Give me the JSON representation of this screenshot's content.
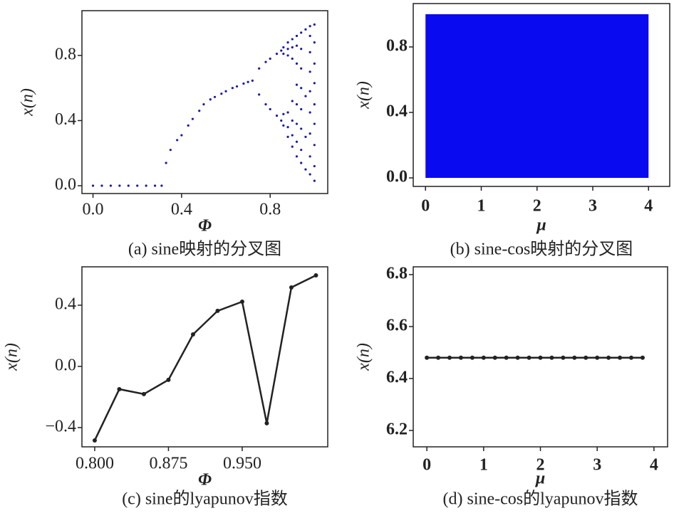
{
  "chart_data": [
    {
      "type": "scatter",
      "caption": "(a) sine映射的分叉图",
      "xlabel": "Φ",
      "ylabel": "x(n)",
      "color": "#1a1aa6",
      "xlim": [
        -0.05,
        1.06
      ],
      "ylim": [
        -0.048,
        1.075
      ],
      "xticks": [
        {
          "value": 0,
          "label": "0.0"
        },
        0.4,
        0.8
      ],
      "yticks": [
        {
          "value": 0,
          "label": "0.0"
        },
        0.4,
        0.8
      ],
      "x": [
        0,
        0.04,
        0.08,
        0.12,
        0.16,
        0.2,
        0.24,
        0.28,
        0.31,
        0.33,
        0.35,
        0.38,
        0.4,
        0.43,
        0.45,
        0.48,
        0.5,
        0.53,
        0.55,
        0.58,
        0.6,
        0.63,
        0.65,
        0.68,
        0.7,
        0.72,
        0.75,
        0.75,
        0.78,
        0.78,
        0.8,
        0.8,
        0.83,
        0.83,
        0.85,
        0.85,
        0.86,
        0.86,
        0.86,
        0.86,
        0.88,
        0.88,
        0.88,
        0.88,
        0.88,
        0.88,
        0.9,
        0.9,
        0.9,
        0.9,
        0.9,
        0.9,
        0.9,
        0.92,
        0.92,
        0.92,
        0.92,
        0.92,
        0.92,
        0.92,
        0.92,
        0.94,
        0.94,
        0.94,
        0.94,
        0.94,
        0.94,
        0.94,
        0.94,
        0.96,
        0.96,
        0.96,
        0.96,
        0.98,
        0.98,
        0.98,
        0.98,
        0.98,
        0.98,
        0.98,
        0.98,
        0.98,
        1.0,
        1.0,
        1.0,
        1.0,
        1.0,
        1.0,
        1.0,
        1.0,
        1.0
      ],
      "y": [
        0,
        0,
        0,
        0,
        0,
        0,
        0,
        0,
        0,
        0.14,
        0.22,
        0.28,
        0.31,
        0.37,
        0.41,
        0.46,
        0.5,
        0.53,
        0.545,
        0.565,
        0.58,
        0.6,
        0.61,
        0.627,
        0.637,
        0.645,
        0.72,
        0.56,
        0.76,
        0.5,
        0.78,
        0.47,
        0.81,
        0.43,
        0.83,
        0.4,
        0.85,
        0.81,
        0.44,
        0.37,
        0.3,
        0.36,
        0.45,
        0.8,
        0.84,
        0.88,
        0.24,
        0.31,
        0.4,
        0.52,
        0.78,
        0.85,
        0.9,
        0.18,
        0.27,
        0.38,
        0.5,
        0.62,
        0.75,
        0.86,
        0.92,
        0.14,
        0.22,
        0.35,
        0.47,
        0.6,
        0.72,
        0.84,
        0.94,
        0.1,
        0.3,
        0.55,
        0.96,
        0.07,
        0.18,
        0.32,
        0.45,
        0.58,
        0.7,
        0.82,
        0.92,
        0.98,
        0.03,
        0.12,
        0.25,
        0.38,
        0.5,
        0.63,
        0.75,
        0.88,
        0.99
      ]
    },
    {
      "type": "range",
      "caption": "(b) sine-cos映射的分叉图",
      "xlabel": "μ",
      "ylabel": "x(n)",
      "color": "#0a0af0",
      "xlim": [
        -0.22,
        4.38
      ],
      "ylim": [
        -0.052,
        1.065
      ],
      "xticks": [
        0,
        1,
        2,
        3,
        4
      ],
      "yticks": [
        {
          "value": 0,
          "label": "0.0"
        },
        0.4,
        0.8
      ],
      "x": [
        0,
        4
      ],
      "y_low": [
        0,
        0
      ],
      "y_high": [
        1,
        1
      ]
    },
    {
      "type": "line",
      "caption": "(c) sine的lyapunov指数",
      "xlabel": "Φ",
      "ylabel": "x(n)",
      "color": "#222",
      "xlim": [
        0.787,
        1.037
      ],
      "ylim": [
        -0.526,
        0.651
      ],
      "xticks": [
        {
          "value": 0.8,
          "label": "0.800"
        },
        {
          "value": 0.875,
          "label": "0.875"
        },
        {
          "value": 0.95,
          "label": "0.950"
        }
      ],
      "yticks": [
        {
          "value": -0.4,
          "label": "−0.4"
        },
        {
          "value": 0,
          "label": "0.0"
        },
        0.4
      ],
      "x": [
        0.8,
        0.825,
        0.85,
        0.875,
        0.9,
        0.925,
        0.95,
        0.975,
        1.0,
        1.025
      ],
      "values": [
        -0.484,
        -0.149,
        -0.181,
        -0.088,
        0.209,
        0.363,
        0.423,
        -0.372,
        0.516,
        0.595
      ]
    },
    {
      "type": "line",
      "caption": "(d) sine-cos的lyapunov指数",
      "xlabel": "μ",
      "ylabel": "x(n)",
      "color": "#222",
      "xlim": [
        -0.24,
        4.24
      ],
      "ylim": [
        6.137,
        6.83
      ],
      "xticks": [
        0,
        1,
        2,
        3,
        4
      ],
      "yticks": [
        6.2,
        6.4,
        6.6,
        6.8
      ],
      "x": [
        0,
        0.2,
        0.4,
        0.6,
        0.8,
        1.0,
        1.2,
        1.4,
        1.6,
        1.8,
        2.0,
        2.2,
        2.4,
        2.6,
        2.8,
        3.0,
        3.2,
        3.4,
        3.6,
        3.8
      ],
      "values": [
        6.48,
        6.48,
        6.48,
        6.48,
        6.48,
        6.48,
        6.48,
        6.48,
        6.48,
        6.48,
        6.48,
        6.48,
        6.48,
        6.48,
        6.48,
        6.48,
        6.48,
        6.48,
        6.48,
        6.48
      ]
    }
  ]
}
